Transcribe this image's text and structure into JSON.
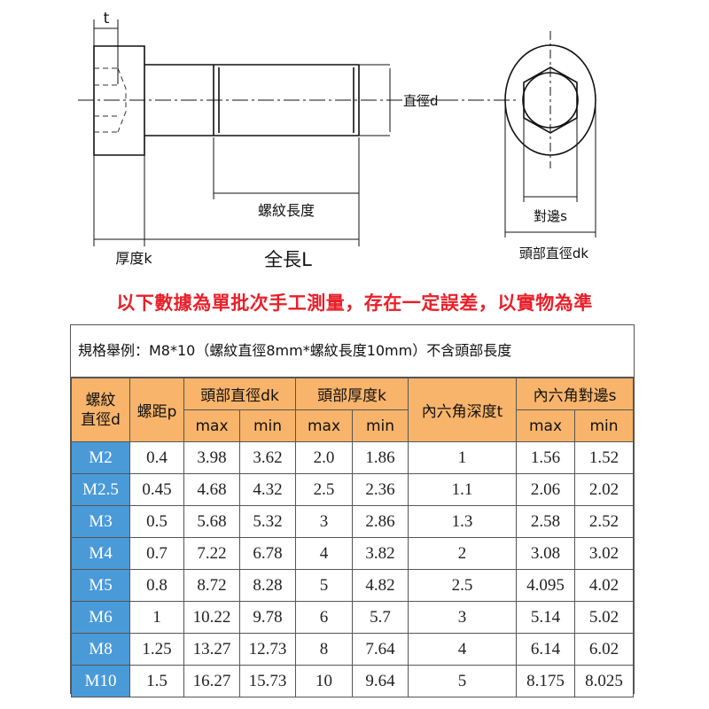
{
  "drawing": {
    "label_t": "t",
    "label_diameter": "直徑d",
    "label_thread_length": "螺紋長度",
    "label_head_thickness": "厚度k",
    "label_total_length": "全長L",
    "label_across_flats": "對邊s",
    "label_head_diameter": "頭部直徑dk"
  },
  "notice": "以下數據為單批次手工測量，存在一定誤差，以實物為準",
  "table": {
    "caption": "規格舉例：M8*10（螺紋直徑8mm*螺紋長度10mm）不含頭部長度",
    "headers": {
      "thread_diameter": [
        "螺紋",
        "直徑d"
      ],
      "pitch": "螺距p",
      "head_diameter": "頭部直徑dk",
      "head_thickness": "頭部厚度k",
      "socket_depth": "內六角深度t",
      "across_flats": "內六角對邊s",
      "max": "max",
      "min": "min"
    },
    "rows": [
      [
        "M2",
        "0.4",
        "3.98",
        "3.62",
        "2.0",
        "1.86",
        "1",
        "1.56",
        "1.52"
      ],
      [
        "M2.5",
        "0.45",
        "4.68",
        "4.32",
        "2.5",
        "2.36",
        "1.1",
        "2.06",
        "2.02"
      ],
      [
        "M3",
        "0.5",
        "5.68",
        "5.32",
        "3",
        "2.86",
        "1.3",
        "2.58",
        "2.52"
      ],
      [
        "M4",
        "0.7",
        "7.22",
        "6.78",
        "4",
        "3.82",
        "2",
        "3.08",
        "3.02"
      ],
      [
        "M5",
        "0.8",
        "8.72",
        "8.28",
        "5",
        "4.82",
        "2.5",
        "4.095",
        "4.02"
      ],
      [
        "M6",
        "1",
        "10.22",
        "9.78",
        "6",
        "5.7",
        "3",
        "5.14",
        "5.02"
      ],
      [
        "M8",
        "1.25",
        "13.27",
        "12.73",
        "8",
        "7.64",
        "4",
        "6.14",
        "6.02"
      ],
      [
        "M10",
        "1.5",
        "16.27",
        "15.73",
        "10",
        "9.64",
        "5",
        "8.175",
        "8.025"
      ]
    ],
    "colors": {
      "header": "#f8b46a",
      "spec_column": "#4a9ad8",
      "notice": "#e8202a"
    }
  }
}
